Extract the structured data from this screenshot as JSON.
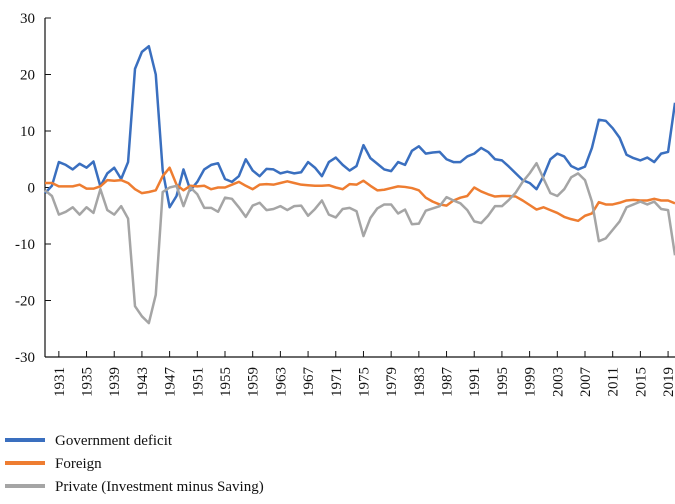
{
  "chart_data": {
    "type": "line",
    "x": [
      1929,
      1930,
      1931,
      1932,
      1933,
      1934,
      1935,
      1936,
      1937,
      1938,
      1939,
      1940,
      1941,
      1942,
      1943,
      1944,
      1945,
      1946,
      1947,
      1948,
      1949,
      1950,
      1951,
      1952,
      1953,
      1954,
      1955,
      1956,
      1957,
      1958,
      1959,
      1960,
      1961,
      1962,
      1963,
      1964,
      1965,
      1966,
      1967,
      1968,
      1969,
      1970,
      1971,
      1972,
      1973,
      1974,
      1975,
      1976,
      1977,
      1978,
      1979,
      1980,
      1981,
      1982,
      1983,
      1984,
      1985,
      1986,
      1987,
      1988,
      1989,
      1990,
      1991,
      1992,
      1993,
      1994,
      1995,
      1996,
      1997,
      1998,
      1999,
      2000,
      2001,
      2002,
      2003,
      2004,
      2005,
      2006,
      2007,
      2008,
      2009,
      2010,
      2011,
      2012,
      2013,
      2014,
      2015,
      2016,
      2017,
      2018,
      2019,
      2020
    ],
    "series": [
      {
        "name": "Government deficit",
        "color": "#3a6fbf",
        "values": [
          -1,
          0.3,
          4.5,
          4,
          3.2,
          4.2,
          3.5,
          4.6,
          0.2,
          2.5,
          3.5,
          1.5,
          4.5,
          21,
          24,
          25,
          20,
          3,
          -3.5,
          -1.5,
          3.2,
          -0.5,
          1,
          3.2,
          4,
          4.3,
          1.5,
          1,
          2,
          5,
          3,
          2,
          3.3,
          3.2,
          2.5,
          2.8,
          2.5,
          2.7,
          4.5,
          3.5,
          2,
          4.5,
          5.3,
          4,
          3,
          3.8,
          7.5,
          5.2,
          4.2,
          3.2,
          2.9,
          4.5,
          4,
          6.5,
          7.3,
          6,
          6.2,
          6.3,
          5,
          4.5,
          4.5,
          5.5,
          6,
          7,
          6.3,
          5,
          4.8,
          3.7,
          2.5,
          1.3,
          0.8,
          -0.3,
          2,
          5,
          6,
          5.5,
          3.8,
          3.2,
          3.7,
          7,
          12,
          11.8,
          10.5,
          8.8,
          5.8,
          5.2,
          4.8,
          5.3,
          4.5,
          6,
          6.3,
          15
        ]
      },
      {
        "name": "Foreign",
        "color": "#ee7d31",
        "values": [
          0.8,
          0.8,
          0.2,
          0.2,
          0.2,
          0.5,
          -0.2,
          -0.2,
          0.2,
          1.3,
          1.2,
          1.3,
          0.8,
          -0.3,
          -1,
          -0.8,
          -0.5,
          2,
          3.5,
          0.5,
          -0.5,
          0.3,
          0.2,
          0.3,
          -0.3,
          0,
          0,
          0.5,
          1,
          0.3,
          -0.3,
          0.5,
          0.6,
          0.5,
          0.8,
          1.1,
          0.8,
          0.5,
          0.4,
          0.3,
          0.3,
          0.4,
          0,
          -0.3,
          0.6,
          0.5,
          1.2,
          0.3,
          -0.5,
          -0.4,
          -0.1,
          0.2,
          0.1,
          -0.1,
          -0.5,
          -1.8,
          -2.5,
          -3,
          -3.2,
          -2.3,
          -1.8,
          -1.5,
          0,
          -0.7,
          -1.2,
          -1.6,
          -1.5,
          -1.5,
          -1.6,
          -2.3,
          -3.1,
          -3.9,
          -3.5,
          -4,
          -4.5,
          -5.2,
          -5.6,
          -5.9,
          -5,
          -4.6,
          -2.6,
          -3,
          -3,
          -2.7,
          -2.3,
          -2.2,
          -2.3,
          -2.3,
          -2,
          -2.3,
          -2.3,
          -2.8
        ]
      },
      {
        "name": "Private (Investment minus Saving)",
        "color": "#a5a5a5",
        "values": [
          -0.5,
          -1.5,
          -4.8,
          -4.3,
          -3.5,
          -4.8,
          -3.5,
          -4.5,
          -0.3,
          -4,
          -4.8,
          -3.3,
          -5.5,
          -21,
          -22.8,
          -24,
          -19,
          -0.8,
          0,
          0.3,
          -3.3,
          0,
          -1.2,
          -3.6,
          -3.6,
          -4.3,
          -1.8,
          -2,
          -3.5,
          -5.2,
          -3.2,
          -2.7,
          -4,
          -3.8,
          -3.3,
          -4,
          -3.3,
          -3.2,
          -5,
          -3.8,
          -2.3,
          -4.8,
          -5.3,
          -3.8,
          -3.6,
          -4.2,
          -8.6,
          -5.4,
          -3.7,
          -3,
          -3,
          -4.6,
          -3.9,
          -6.5,
          -6.4,
          -4.1,
          -3.7,
          -3.3,
          -1.7,
          -2.3,
          -2.8,
          -4,
          -6,
          -6.3,
          -5,
          -3.3,
          -3.3,
          -2.2,
          -0.9,
          1,
          2.5,
          4.3,
          1.6,
          -1,
          -1.5,
          -0.3,
          1.8,
          2.5,
          1.3,
          -2.5,
          -9.5,
          -9,
          -7.5,
          -6,
          -3.5,
          -3,
          -2.5,
          -3,
          -2.5,
          -3.8,
          -4,
          -12
        ]
      }
    ],
    "xlim": [
      1929,
      2020
    ],
    "xticks": [
      1931,
      1935,
      1939,
      1943,
      1947,
      1951,
      1955,
      1959,
      1963,
      1967,
      1971,
      1975,
      1979,
      1983,
      1987,
      1991,
      1995,
      1999,
      2003,
      2007,
      2011,
      2015,
      2019
    ],
    "ylim": [
      -30,
      30
    ],
    "yticks": [
      -30,
      -20,
      -10,
      0,
      10,
      20,
      30
    ]
  }
}
